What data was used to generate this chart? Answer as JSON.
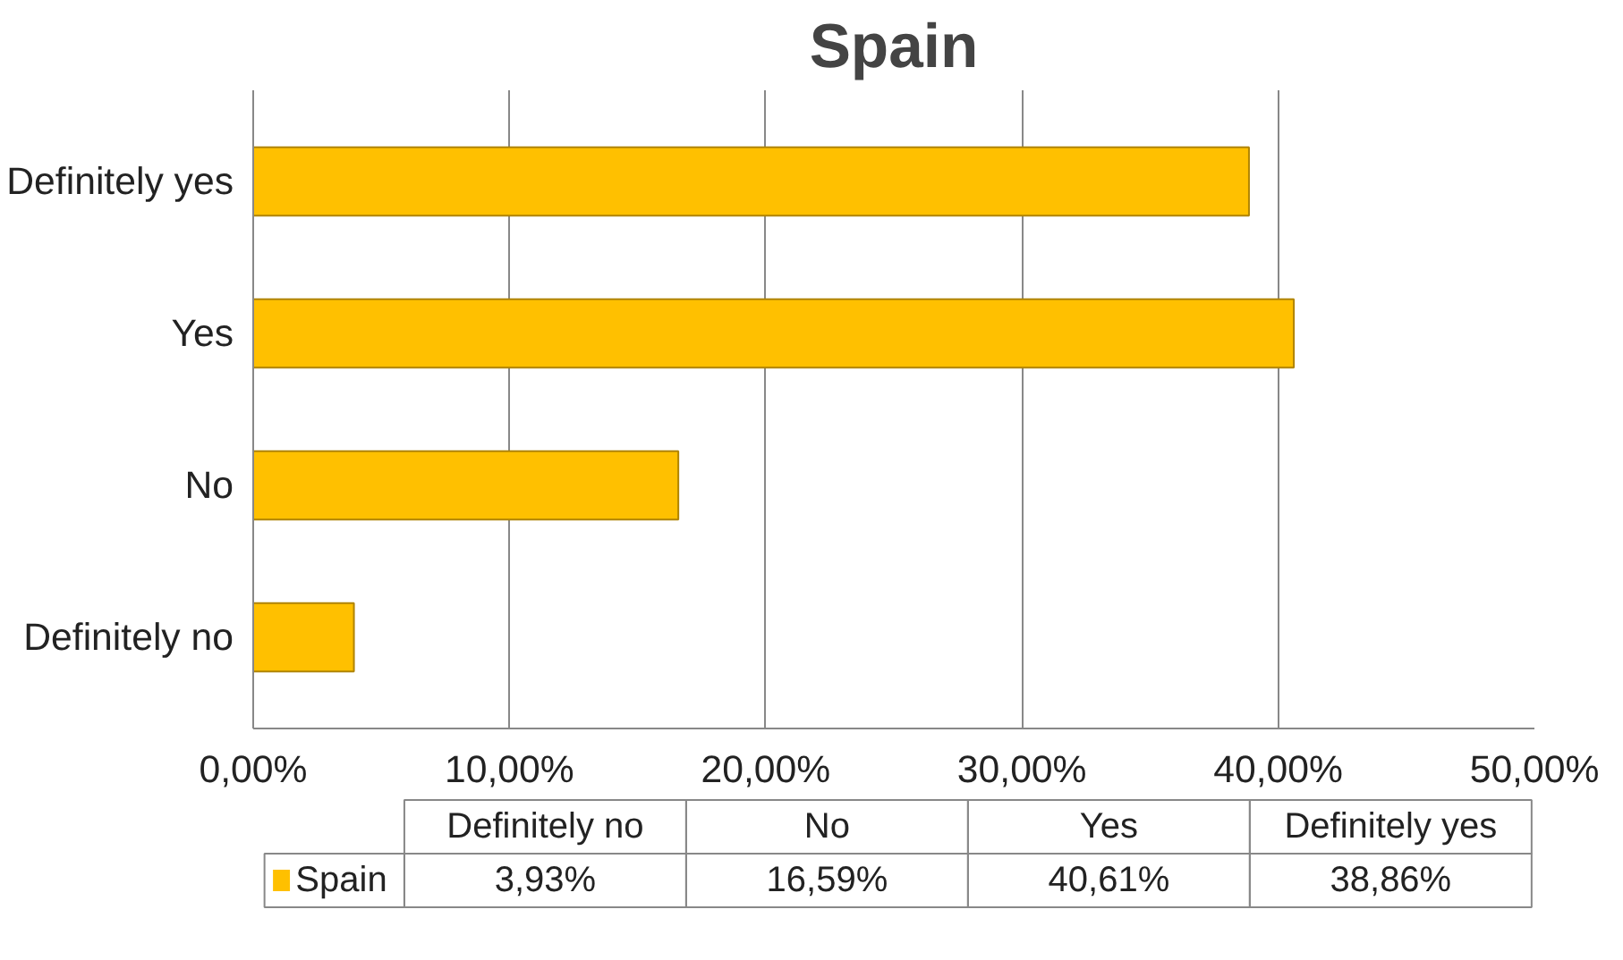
{
  "chart_data": {
    "type": "bar",
    "orientation": "horizontal",
    "title": "Spain",
    "categories": [
      "Definitely yes",
      "Yes",
      "No",
      "Definitely no"
    ],
    "series": [
      {
        "name": "Spain",
        "color": "#ffc000",
        "values": [
          38.86,
          40.61,
          16.59,
          3.93
        ]
      }
    ],
    "annotations": [
      "3,93%",
      "16,59%",
      "40,61%",
      "38,86%"
    ],
    "xlim": [
      0,
      50
    ],
    "xticks": [
      {
        "value": 0,
        "label": "0,00%"
      },
      {
        "value": 10,
        "label": "10,00%"
      },
      {
        "value": 20,
        "label": "20,00%"
      },
      {
        "value": 30,
        "label": "30,00%"
      },
      {
        "value": 40,
        "label": "40,00%"
      },
      {
        "value": 50,
        "label": "50,00%"
      }
    ],
    "grid": "x",
    "legend": "bottom"
  }
}
